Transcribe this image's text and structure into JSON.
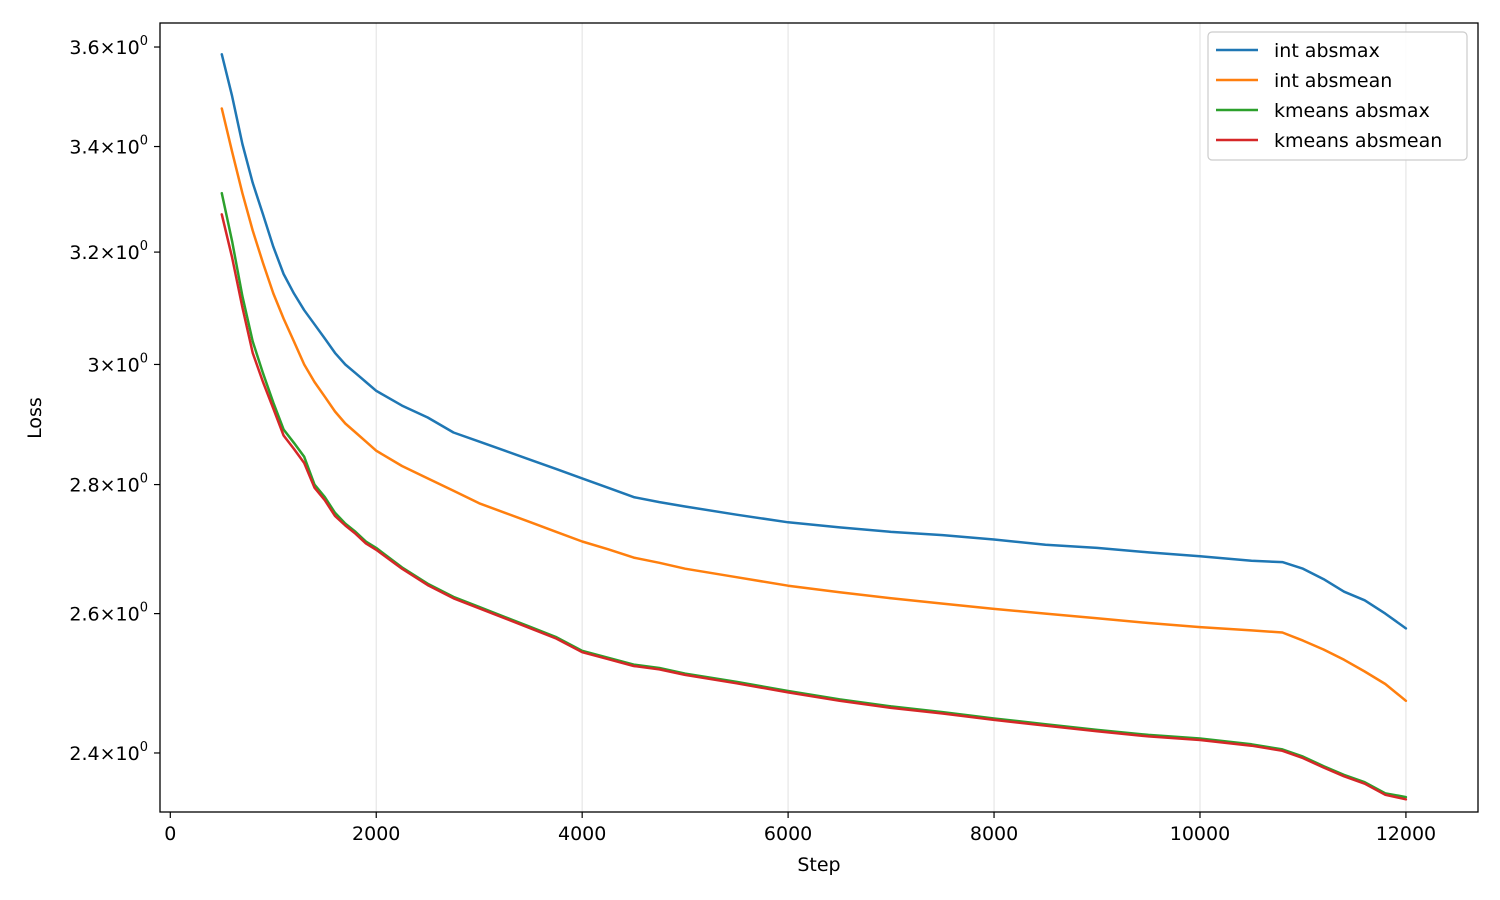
{
  "chart_data": {
    "type": "line",
    "xlabel": "Step",
    "ylabel": "Loss",
    "xlim": [
      -100,
      12700
    ],
    "ylim": [
      2.32,
      3.65
    ],
    "y_scale": "log",
    "grid": "vertical",
    "legend_position": "upper right",
    "x_ticks": [
      {
        "value": 0,
        "label": "0"
      },
      {
        "value": 2000,
        "label": "2000"
      },
      {
        "value": 4000,
        "label": "4000"
      },
      {
        "value": 6000,
        "label": "6000"
      },
      {
        "value": 8000,
        "label": "8000"
      },
      {
        "value": 10000,
        "label": "10000"
      },
      {
        "value": 12000,
        "label": "12000"
      }
    ],
    "y_ticks": [
      {
        "value": 2.4,
        "mantissa": "2.4",
        "base": "10",
        "exponent": "0"
      },
      {
        "value": 2.6,
        "mantissa": "2.6",
        "base": "10",
        "exponent": "0"
      },
      {
        "value": 2.8,
        "mantissa": "2.8",
        "base": "10",
        "exponent": "0"
      },
      {
        "value": 3.0,
        "mantissa": "3",
        "base": "10",
        "exponent": "0"
      },
      {
        "value": 3.2,
        "mantissa": "3.2",
        "base": "10",
        "exponent": "0"
      },
      {
        "value": 3.4,
        "mantissa": "3.4",
        "base": "10",
        "exponent": "0"
      },
      {
        "value": 3.6,
        "mantissa": "3.6",
        "base": "10",
        "exponent": "0"
      }
    ],
    "x": [
      500,
      600,
      700,
      800,
      900,
      1000,
      1100,
      1200,
      1300,
      1400,
      1500,
      1600,
      1700,
      1800,
      1900,
      2000,
      2250,
      2500,
      2750,
      3000,
      3250,
      3500,
      3750,
      4000,
      4250,
      4500,
      4750,
      5000,
      5500,
      6000,
      6500,
      7000,
      7500,
      8000,
      8500,
      9000,
      9500,
      10000,
      10500,
      10800,
      11000,
      11200,
      11400,
      11600,
      11800,
      12000
    ],
    "series": [
      {
        "name": "int absmax",
        "color": "#1f77b4",
        "values": [
          3.585,
          3.5,
          3.405,
          3.33,
          3.27,
          3.21,
          3.16,
          3.125,
          3.095,
          3.07,
          3.045,
          3.02,
          3.0,
          2.985,
          2.97,
          2.955,
          2.93,
          2.91,
          2.885,
          2.87,
          2.855,
          2.84,
          2.825,
          2.81,
          2.795,
          2.78,
          2.772,
          2.765,
          2.752,
          2.74,
          2.732,
          2.725,
          2.72,
          2.713,
          2.705,
          2.7,
          2.693,
          2.687,
          2.68,
          2.678,
          2.668,
          2.652,
          2.633,
          2.62,
          2.6,
          2.578
        ]
      },
      {
        "name": "int absmean",
        "color": "#ff7f0e",
        "values": [
          3.475,
          3.39,
          3.31,
          3.24,
          3.18,
          3.125,
          3.08,
          3.04,
          3.0,
          2.97,
          2.945,
          2.92,
          2.9,
          2.885,
          2.87,
          2.855,
          2.83,
          2.81,
          2.79,
          2.77,
          2.755,
          2.74,
          2.725,
          2.71,
          2.698,
          2.685,
          2.677,
          2.668,
          2.655,
          2.642,
          2.632,
          2.623,
          2.615,
          2.607,
          2.6,
          2.593,
          2.586,
          2.58,
          2.575,
          2.572,
          2.56,
          2.547,
          2.532,
          2.515,
          2.497,
          2.473
        ]
      },
      {
        "name": "kmeans absmax",
        "color": "#2ca02c",
        "values": [
          3.31,
          3.22,
          3.12,
          3.04,
          2.985,
          2.935,
          2.89,
          2.868,
          2.845,
          2.8,
          2.78,
          2.755,
          2.738,
          2.725,
          2.71,
          2.7,
          2.67,
          2.645,
          2.625,
          2.61,
          2.595,
          2.58,
          2.565,
          2.545,
          2.535,
          2.525,
          2.52,
          2.512,
          2.5,
          2.487,
          2.475,
          2.465,
          2.457,
          2.448,
          2.44,
          2.432,
          2.425,
          2.42,
          2.412,
          2.405,
          2.395,
          2.382,
          2.37,
          2.36,
          2.345,
          2.34
        ]
      },
      {
        "name": "kmeans absmean",
        "color": "#d62728",
        "values": [
          3.27,
          3.19,
          3.1,
          3.02,
          2.97,
          2.925,
          2.88,
          2.858,
          2.835,
          2.795,
          2.775,
          2.75,
          2.735,
          2.722,
          2.707,
          2.697,
          2.668,
          2.643,
          2.623,
          2.608,
          2.593,
          2.578,
          2.563,
          2.543,
          2.533,
          2.523,
          2.518,
          2.51,
          2.498,
          2.485,
          2.473,
          2.463,
          2.455,
          2.446,
          2.438,
          2.43,
          2.423,
          2.418,
          2.41,
          2.403,
          2.393,
          2.38,
          2.368,
          2.358,
          2.343,
          2.337
        ]
      }
    ]
  }
}
